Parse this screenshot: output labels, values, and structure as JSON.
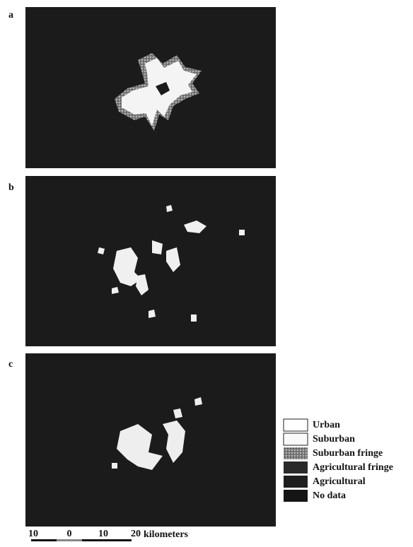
{
  "panels": [
    {
      "label": "a"
    },
    {
      "label": "b"
    },
    {
      "label": "c"
    }
  ],
  "legend": {
    "items": [
      "Urban",
      "Suburban",
      "Suburban fringe",
      "Agricultural fringe",
      "Agricultural",
      "No data"
    ]
  },
  "scale_bar": {
    "ticks": [
      "10",
      "0",
      "10",
      "20"
    ],
    "unit": "kilometers"
  }
}
